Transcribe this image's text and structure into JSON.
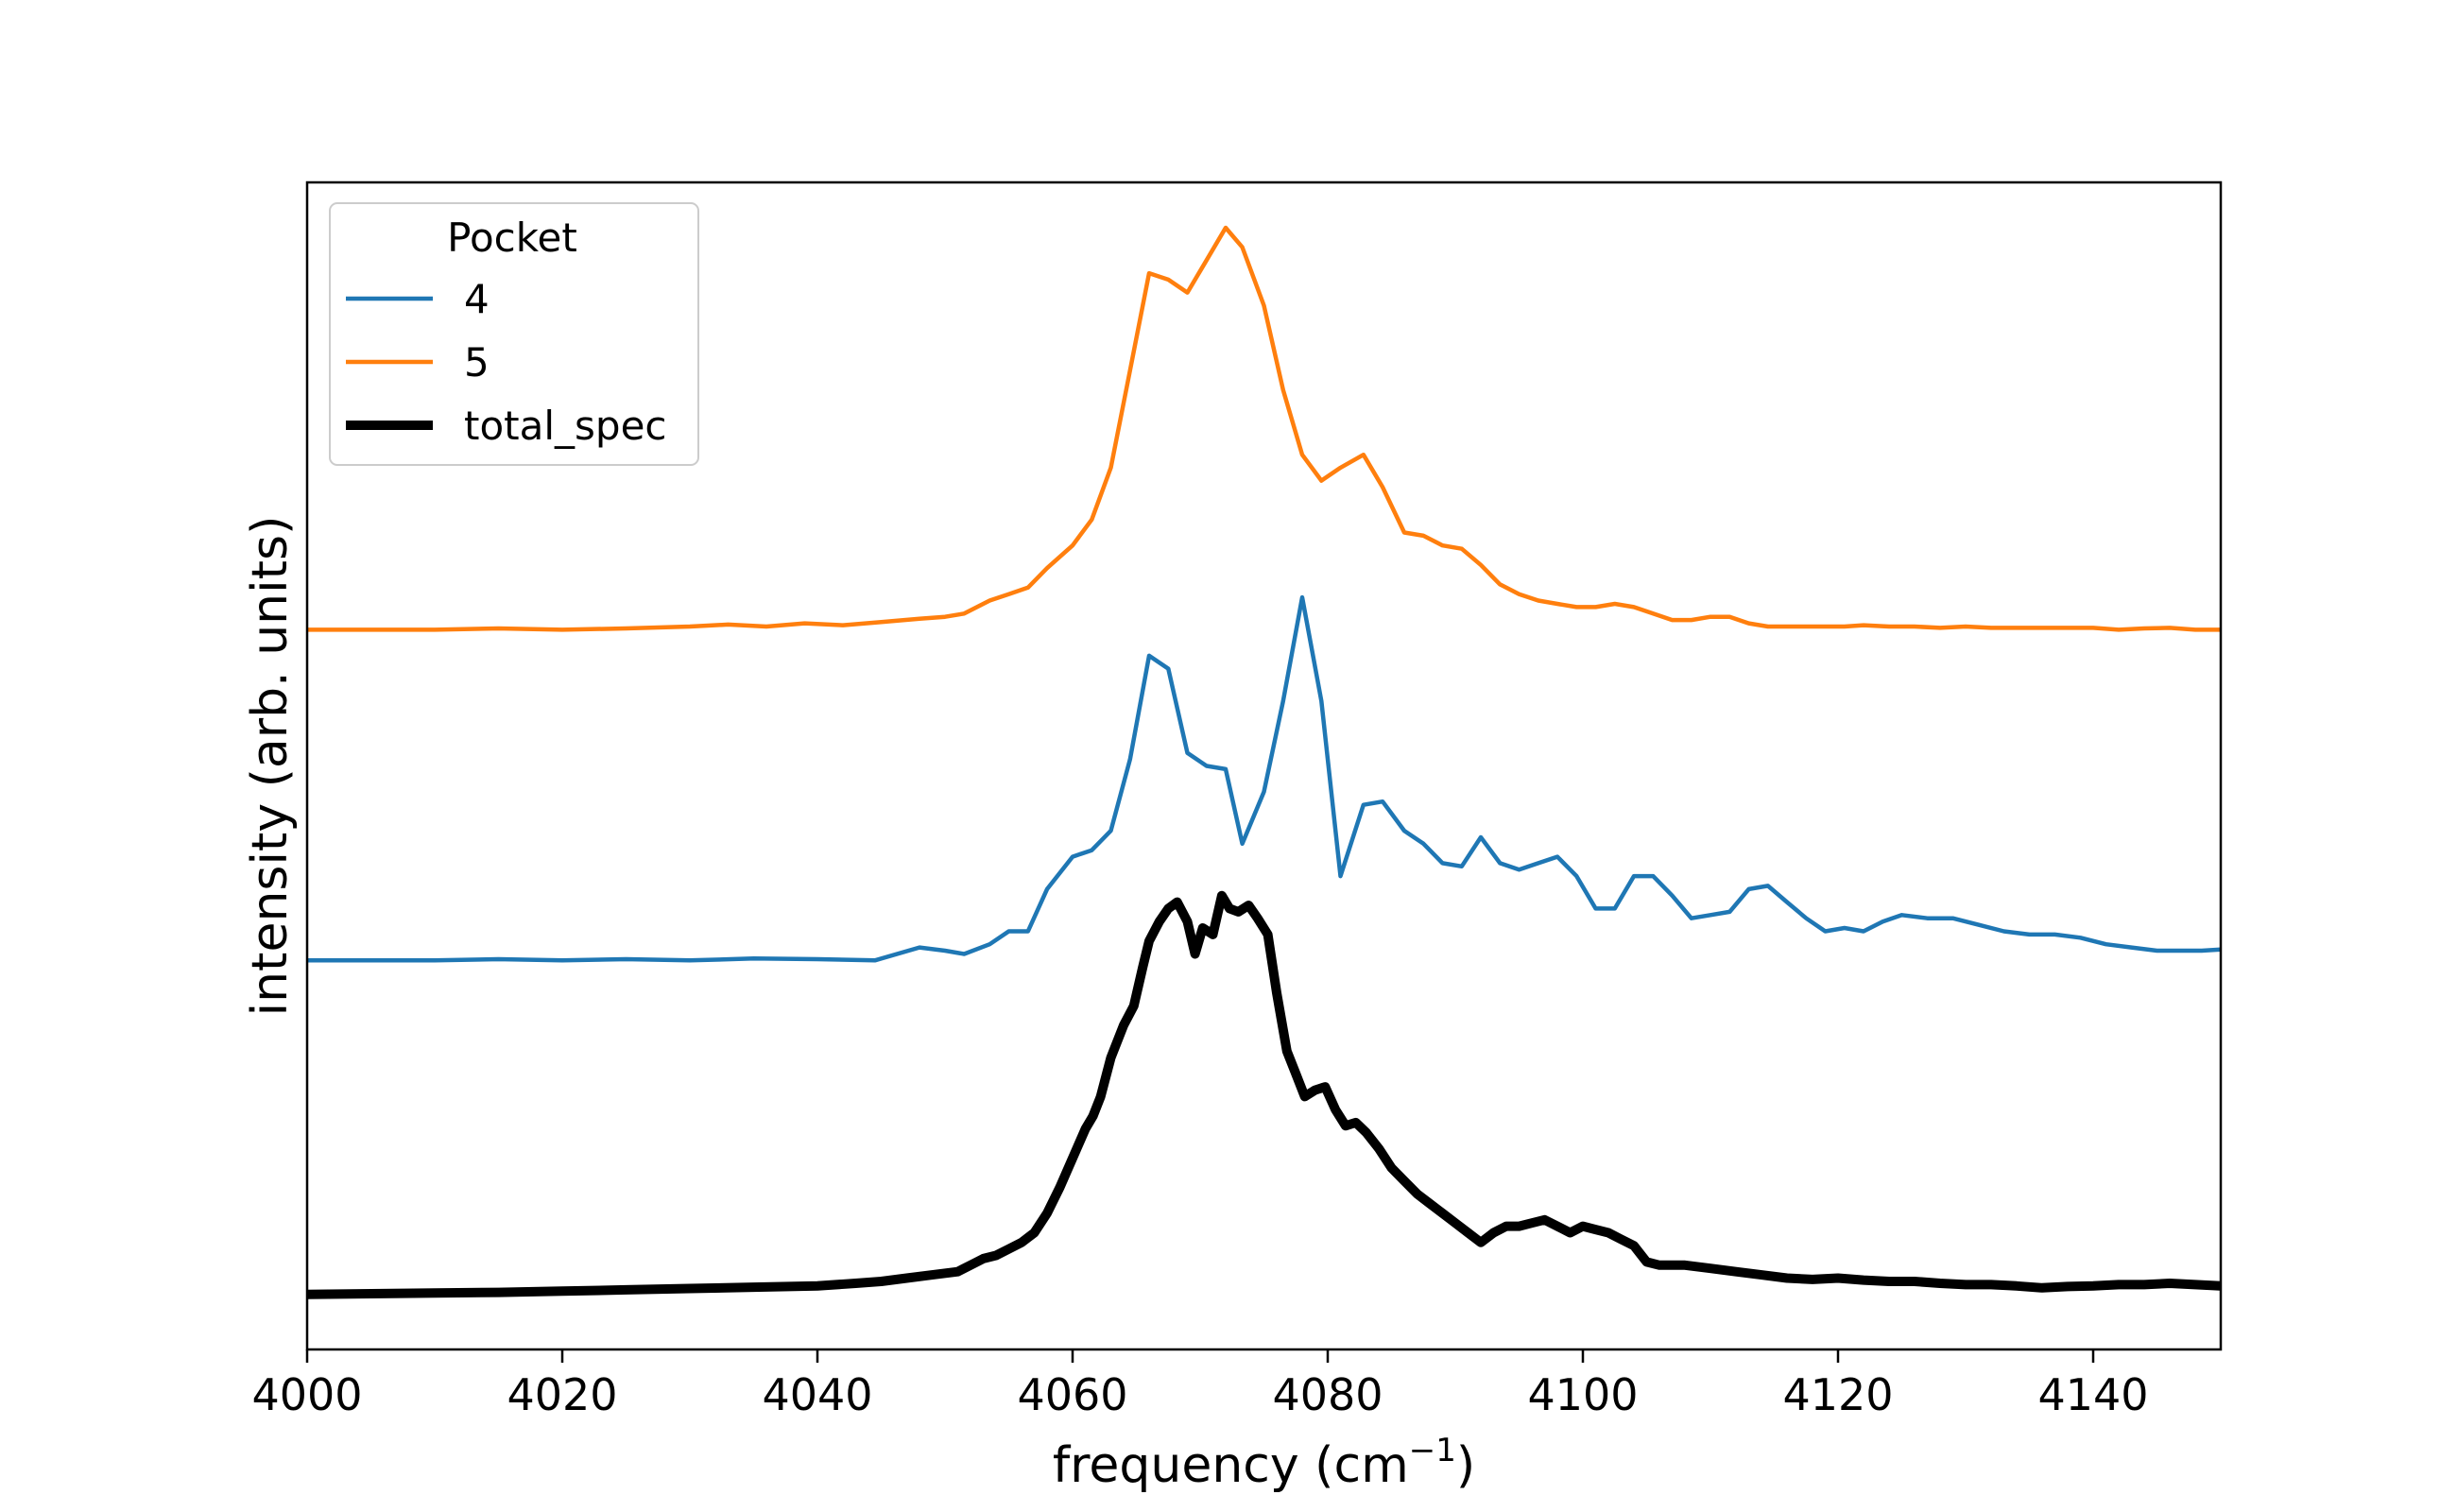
{
  "chart_data": {
    "type": "line",
    "title": "",
    "xlabel": "frequency (cm",
    "xlabel_sup": "−1",
    "xlabel_close": ")",
    "ylabel": "intensity (arb. units)",
    "xlim": [
      4000,
      4150
    ],
    "ylim": [
      -0.08,
      1.72
    ],
    "x_ticks": [
      "4000",
      "4020",
      "4040",
      "4060",
      "4080",
      "4100",
      "4120",
      "4140"
    ],
    "x_tick_values": [
      4000,
      4020,
      4040,
      4060,
      4080,
      4100,
      4120,
      4140
    ],
    "grid": false,
    "legend": {
      "title": "Pocket",
      "placement": "upper-left",
      "entries": [
        "4",
        "5",
        "total_spec"
      ]
    },
    "colors": {
      "4": "#1f77b4",
      "5": "#ff7f0e",
      "total_spec": "#000000"
    },
    "series": [
      {
        "name": "4",
        "x": [
          4000,
          4005,
          4010,
          4015,
          4020,
          4025,
          4030,
          4035,
          4040,
          4044.5,
          4048,
          4050,
          4051.5,
          4053.5,
          4055,
          4056.5,
          4058,
          4060,
          4061.5,
          4063,
          4064.5,
          4066,
          4067.5,
          4069,
          4070.5,
          4072,
          4073.3,
          4075,
          4076.5,
          4078,
          4079.5,
          4081,
          4082.8,
          4084.3,
          4086,
          4087.5,
          4089,
          4090.5,
          4092,
          4093.5,
          4095,
          4096.5,
          4098,
          4099.5,
          4101,
          4102.5,
          4104,
          4105.5,
          4107,
          4108.5,
          4110,
          4111.5,
          4113,
          4114.5,
          4116,
          4117.5,
          4119,
          4120.5,
          4122,
          4123.5,
          4125,
          4127,
          4129,
          4131,
          4133,
          4135,
          4137,
          4139,
          4141,
          4143,
          4145,
          4147,
          4148.5,
          4150
        ],
        "y": [
          0.52,
          0.52,
          0.52,
          0.522,
          0.52,
          0.522,
          0.52,
          0.523,
          0.522,
          0.52,
          0.54,
          0.535,
          0.53,
          0.545,
          0.565,
          0.565,
          0.63,
          0.68,
          0.69,
          0.72,
          0.83,
          0.99,
          0.97,
          0.84,
          0.82,
          0.815,
          0.7,
          0.78,
          0.92,
          1.08,
          0.92,
          0.65,
          0.76,
          0.765,
          0.72,
          0.7,
          0.67,
          0.665,
          0.71,
          0.67,
          0.66,
          0.67,
          0.68,
          0.65,
          0.6,
          0.6,
          0.65,
          0.65,
          0.62,
          0.585,
          0.59,
          0.595,
          0.63,
          0.635,
          0.61,
          0.585,
          0.565,
          0.57,
          0.565,
          0.58,
          0.59,
          0.585,
          0.585,
          0.575,
          0.565,
          0.56,
          0.56,
          0.555,
          0.545,
          0.54,
          0.535,
          0.535,
          0.535,
          0.537
        ]
      },
      {
        "name": "5",
        "x": [
          4000,
          4005,
          4010,
          4015,
          4020,
          4025,
          4030,
          4033,
          4036,
          4039,
          4042,
          4045,
          4048,
          4050,
          4051.5,
          4053.5,
          4055,
          4056.5,
          4058,
          4060,
          4061.5,
          4063,
          4064.5,
          4066,
          4067.5,
          4069,
          4070.5,
          4072,
          4073.3,
          4075,
          4076.5,
          4078,
          4079.5,
          4081,
          4082.8,
          4084.3,
          4086,
          4087.5,
          4089,
          4090.5,
          4092,
          4093.5,
          4095,
          4096.5,
          4098,
          4099.5,
          4101,
          4102.5,
          4104,
          4105.5,
          4107,
          4108.5,
          4110,
          4111.5,
          4113,
          4114.5,
          4116,
          4117.5,
          4119,
          4120.5,
          4122,
          4124,
          4126,
          4128,
          4130,
          4132,
          4134,
          4136,
          4138,
          4140,
          4142,
          4144,
          4146,
          4148,
          4150
        ],
        "y": [
          1.03,
          1.03,
          1.03,
          1.032,
          1.03,
          1.032,
          1.035,
          1.038,
          1.035,
          1.04,
          1.037,
          1.042,
          1.047,
          1.05,
          1.055,
          1.075,
          1.085,
          1.095,
          1.125,
          1.16,
          1.2,
          1.28,
          1.43,
          1.58,
          1.57,
          1.55,
          1.6,
          1.65,
          1.62,
          1.53,
          1.4,
          1.3,
          1.26,
          1.28,
          1.3,
          1.25,
          1.18,
          1.175,
          1.16,
          1.155,
          1.13,
          1.1,
          1.085,
          1.075,
          1.07,
          1.065,
          1.065,
          1.07,
          1.065,
          1.055,
          1.045,
          1.045,
          1.05,
          1.05,
          1.04,
          1.035,
          1.035,
          1.035,
          1.035,
          1.035,
          1.037,
          1.035,
          1.035,
          1.033,
          1.035,
          1.033,
          1.033,
          1.033,
          1.033,
          1.033,
          1.03,
          1.032,
          1.033,
          1.03,
          1.03
        ]
      },
      {
        "name": "total_spec",
        "x": [
          4000,
          4005,
          4010,
          4015,
          4020,
          4025,
          4030,
          4035,
          4040,
          4043,
          4045,
          4047,
          4049,
          4051,
          4052,
          4053,
          4054,
          4055,
          4056,
          4057,
          4058,
          4059,
          4060,
          4061,
          4061.6,
          4062.2,
          4063,
          4064,
          4064.8,
          4065.5,
          4066,
          4066.8,
          4067.5,
          4068.2,
          4069,
          4069.6,
          4070.2,
          4071,
          4071.7,
          4072.3,
          4073,
          4073.8,
          4074.5,
          4075.3,
          4076,
          4076.8,
          4077.5,
          4078.2,
          4079,
          4079.8,
          4080.6,
          4081.4,
          4082.2,
          4083,
          4084,
          4085,
          4086,
          4087,
          4088,
          4089,
          4090,
          4091,
          4092,
          4093,
          4094,
          4095,
          4096,
          4097,
          4098,
          4099,
          4100,
          4101,
          4102,
          4103,
          4104,
          4105,
          4106,
          4108,
          4110,
          4112,
          4114,
          4116,
          4118,
          4120,
          4122,
          4124,
          4126,
          4128,
          4130,
          4132,
          4134,
          4136,
          4138,
          4140,
          4142,
          4144,
          4146,
          4148,
          4150
        ],
        "y": [
          0.005,
          0.006,
          0.007,
          0.008,
          0.01,
          0.012,
          0.014,
          0.016,
          0.018,
          0.022,
          0.025,
          0.03,
          0.035,
          0.04,
          0.05,
          0.06,
          0.065,
          0.075,
          0.085,
          0.1,
          0.13,
          0.17,
          0.215,
          0.26,
          0.28,
          0.31,
          0.37,
          0.42,
          0.45,
          0.51,
          0.55,
          0.58,
          0.6,
          0.61,
          0.58,
          0.53,
          0.57,
          0.56,
          0.62,
          0.6,
          0.595,
          0.605,
          0.585,
          0.56,
          0.47,
          0.38,
          0.345,
          0.31,
          0.32,
          0.325,
          0.29,
          0.265,
          0.27,
          0.255,
          0.23,
          0.2,
          0.18,
          0.16,
          0.145,
          0.13,
          0.115,
          0.1,
          0.085,
          0.1,
          0.11,
          0.11,
          0.115,
          0.12,
          0.11,
          0.1,
          0.11,
          0.105,
          0.1,
          0.09,
          0.08,
          0.055,
          0.05,
          0.05,
          0.045,
          0.04,
          0.035,
          0.03,
          0.028,
          0.03,
          0.027,
          0.025,
          0.025,
          0.022,
          0.02,
          0.02,
          0.018,
          0.015,
          0.017,
          0.018,
          0.02,
          0.02,
          0.022,
          0.02,
          0.018
        ]
      }
    ]
  }
}
